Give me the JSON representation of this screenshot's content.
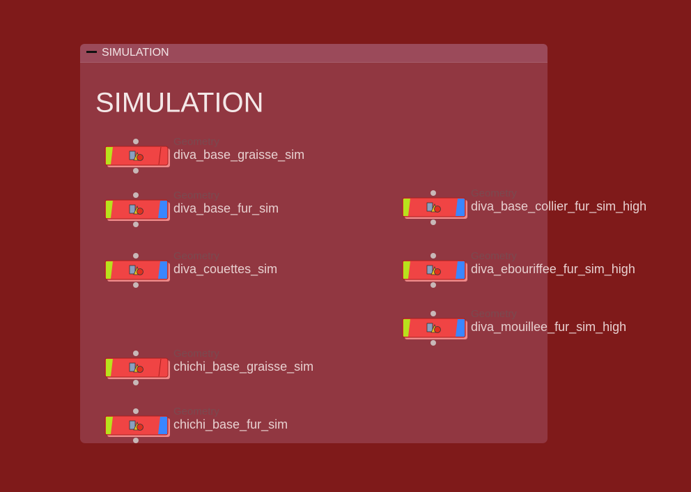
{
  "network_box": {
    "header": "SIMULATION",
    "label": "SIMULATION",
    "nodes": [
      {
        "type": "Geometry",
        "name": "diva_base_graisse_sim",
        "display_flag": false
      },
      {
        "type": "Geometry",
        "name": "diva_base_fur_sim",
        "display_flag": true
      },
      {
        "type": "Geometry",
        "name": "diva_couettes_sim",
        "display_flag": true
      },
      {
        "type": "Geometry",
        "name": "chichi_base_graisse_sim",
        "display_flag": false
      },
      {
        "type": "Geometry",
        "name": "chichi_base_fur_sim",
        "display_flag": true
      },
      {
        "type": "Geometry",
        "name": "diva_base_collier_fur_sim_high",
        "display_flag": true
      },
      {
        "type": "Geometry",
        "name": "diva_ebouriffee_fur_sim_high",
        "display_flag": true
      },
      {
        "type": "Geometry",
        "name": "diva_mouillee_fur_sim_high",
        "display_flag": true
      }
    ]
  }
}
